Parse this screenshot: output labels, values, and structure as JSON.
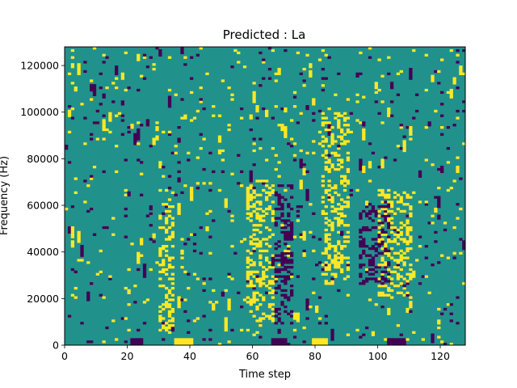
{
  "chart_data": {
    "type": "heatmap",
    "title": "Predicted : La",
    "xlabel": "Time step",
    "ylabel": "Frequency (Hz)",
    "xlim": [
      0,
      128
    ],
    "ylim": [
      0,
      128000
    ],
    "xticks": [
      "0",
      "20",
      "40",
      "60",
      "80",
      "100",
      "120"
    ],
    "yticks": [
      "0",
      "20000",
      "40000",
      "60000",
      "80000",
      "100000",
      "120000"
    ],
    "grid": false,
    "legend": "none",
    "colormap": "viridis",
    "colors": {
      "low": "#440154",
      "mid": "#21918c",
      "high": "#fde725"
    },
    "levels": [
      -1,
      0,
      1
    ],
    "background_level": 0,
    "grid_cells": [
      128,
      128
    ],
    "clusters": [
      {
        "x": [
          58,
          66
        ],
        "y": [
          10000,
          70000
        ],
        "level": 1
      },
      {
        "x": [
          67,
          72
        ],
        "y": [
          8000,
          68000
        ],
        "level": -1
      },
      {
        "x": [
          100,
          110
        ],
        "y": [
          20000,
          66000
        ],
        "level": 1
      },
      {
        "x": [
          94,
          103
        ],
        "y": [
          26000,
          60000
        ],
        "level": -1
      },
      {
        "x": [
          30,
          34
        ],
        "y": [
          5000,
          66000
        ],
        "level": 1
      },
      {
        "x": [
          82,
          90
        ],
        "y": [
          26000,
          100000
        ],
        "level": 1
      }
    ],
    "bottom_row": [
      {
        "x": [
          35,
          40
        ],
        "level": 1
      },
      {
        "x": [
          79,
          83
        ],
        "level": 1
      },
      {
        "x": [
          21,
          24
        ],
        "level": -1
      },
      {
        "x": [
          66,
          70
        ],
        "level": -1
      },
      {
        "x": [
          103,
          108
        ],
        "level": -1
      }
    ]
  }
}
